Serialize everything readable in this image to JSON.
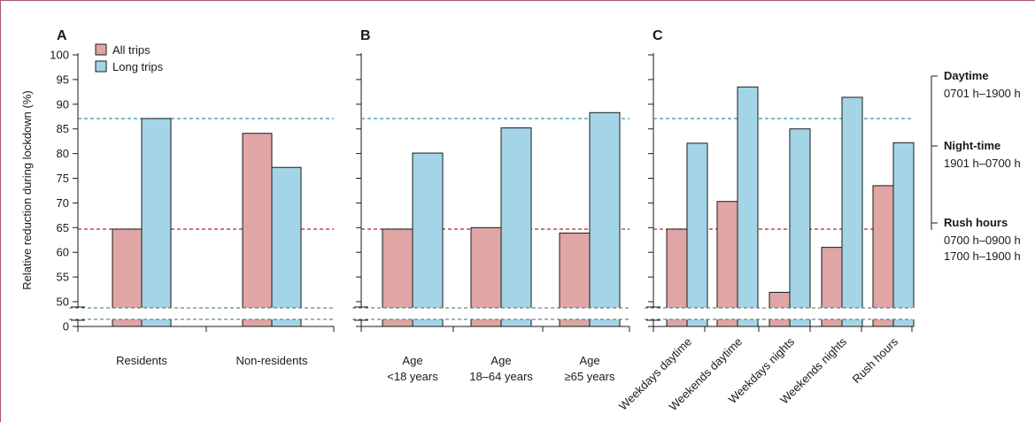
{
  "colors": {
    "all_trips": "#e0a5a5",
    "long_trips": "#a3d5e6",
    "ref_all": "#b5233f",
    "ref_long": "#2b9aa8",
    "break_lines": "#3d6e6e",
    "frame": "#a8527a"
  },
  "chart_data": [
    {
      "type": "bar",
      "panel": "A",
      "categories": [
        "Residents",
        "Non-residents"
      ],
      "series": [
        {
          "name": "All trips",
          "values": [
            64.7,
            84.1
          ]
        },
        {
          "name": "Long trips",
          "values": [
            87.1,
            77.2
          ]
        }
      ],
      "ylabel": "Relative reduction during lockdown (%)",
      "yticks": [
        0,
        50,
        55,
        60,
        65,
        70,
        75,
        80,
        85,
        90,
        95,
        100
      ],
      "ylim": [
        0,
        100
      ],
      "axis_break": true,
      "reference_lines": [
        64.7,
        87.1
      ],
      "legend": "top-left"
    },
    {
      "type": "bar",
      "panel": "B",
      "categories": [
        "Age\n<18 years",
        "Age\n18–64 years",
        "Age\n≥65 years"
      ],
      "series": [
        {
          "name": "All trips",
          "values": [
            64.7,
            65.0,
            63.9
          ]
        },
        {
          "name": "Long trips",
          "values": [
            80.1,
            85.2,
            88.3
          ]
        }
      ],
      "ylim": [
        0,
        100
      ],
      "axis_break": true,
      "reference_lines": [
        64.7,
        87.1
      ]
    },
    {
      "type": "bar",
      "panel": "C",
      "categories": [
        "Weekdays daytime",
        "Weekends daytime",
        "Weekdays nights",
        "Weekends nights",
        "Rush hours"
      ],
      "series": [
        {
          "name": "All trips",
          "values": [
            64.7,
            70.3,
            51.9,
            61.0,
            73.5
          ]
        },
        {
          "name": "Long trips",
          "values": [
            82.1,
            93.5,
            85.0,
            91.4,
            82.2
          ]
        }
      ],
      "ylim": [
        0,
        100
      ],
      "axis_break": true,
      "reference_lines": [
        64.7,
        87.1
      ]
    }
  ],
  "side_legend": [
    {
      "title": "Daytime",
      "lines": [
        "0701 h–1900 h"
      ]
    },
    {
      "title": "Night-time",
      "lines": [
        "1901 h–0700 h"
      ]
    },
    {
      "title": "Rush hours",
      "lines": [
        "0700 h–0900 h",
        "1700 h–1900 h"
      ]
    }
  ]
}
